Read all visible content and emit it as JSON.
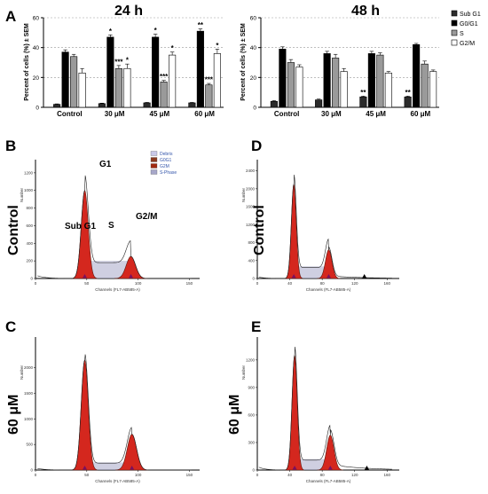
{
  "colors": {
    "sub_g1": "#2b2b2b",
    "g0g1": "#000000",
    "s": "#9a9a9a",
    "g2m": "#ffffff",
    "g0g1_fill": "#cc1f1f",
    "s_phase_fill": "#a7a7c9",
    "debris": "#c8c8e8",
    "highlight": "#ff66ff"
  },
  "legend": {
    "items": [
      "Sub G1",
      "G0/G1",
      "S",
      "G2/M"
    ]
  },
  "panels": {
    "A": "A",
    "B": "B",
    "C": "C",
    "D": "D",
    "E": "E"
  },
  "row_labels": {
    "control_b": "Control",
    "control_d": "Control",
    "conc_c": "60 μM",
    "conc_e": "60 μM"
  },
  "hist_labels": {
    "g1": "G1",
    "subg1": "Sub G1",
    "s": "S",
    "g2m": "G2/M"
  },
  "hist_legend": [
    "Debris",
    "G0G1",
    "G2M",
    "S-Phase"
  ],
  "hist_axis": {
    "xlabel": "Channels (FL7-AB585-A)",
    "ylabel": "Number"
  },
  "chart_data": [
    {
      "type": "bar",
      "title": "24 h",
      "ylabel": "Percent of cells (%) ± SEM",
      "ylim": [
        0,
        60
      ],
      "yticks": [
        0,
        20,
        40,
        60
      ],
      "categories": [
        "Control",
        "30 μM",
        "45 μM",
        "60 μM"
      ],
      "series": [
        {
          "name": "Sub G1",
          "values": [
            2,
            2.5,
            3,
            3
          ],
          "err": [
            0.3,
            0.3,
            0.3,
            0.3
          ]
        },
        {
          "name": "G0/G1",
          "values": [
            37,
            47,
            47,
            51
          ],
          "err": [
            1.5,
            1.5,
            2,
            1.5
          ]
        },
        {
          "name": "S",
          "values": [
            34,
            26,
            17,
            15
          ],
          "err": [
            1.5,
            2,
            1,
            1
          ]
        },
        {
          "name": "G2/M",
          "values": [
            23,
            26,
            35,
            36
          ],
          "err": [
            3,
            3,
            2,
            3
          ]
        }
      ],
      "significance": [
        {
          "category": 1,
          "series": 1,
          "label": "*"
        },
        {
          "category": 1,
          "series": 2,
          "label": "***"
        },
        {
          "category": 1,
          "series": 3,
          "label": "*"
        },
        {
          "category": 2,
          "series": 1,
          "label": "*"
        },
        {
          "category": 2,
          "series": 2,
          "label": "***"
        },
        {
          "category": 2,
          "series": 3,
          "label": "*"
        },
        {
          "category": 3,
          "series": 1,
          "label": "**"
        },
        {
          "category": 3,
          "series": 2,
          "label": "***"
        },
        {
          "category": 3,
          "series": 3,
          "label": "*"
        }
      ]
    },
    {
      "type": "bar",
      "title": "48 h",
      "ylabel": "Percent of cells (%) ± SEM",
      "ylim": [
        0,
        60
      ],
      "yticks": [
        0,
        20,
        40,
        60
      ],
      "categories": [
        "Control",
        "30 μM",
        "45 μM",
        "60 μM"
      ],
      "series": [
        {
          "name": "Sub G1",
          "values": [
            4,
            5,
            7,
            7
          ],
          "err": [
            0.5,
            0.5,
            0.5,
            0.5
          ]
        },
        {
          "name": "G0/G1",
          "values": [
            39,
            36,
            36,
            42
          ],
          "err": [
            1.5,
            1.5,
            1.5,
            0.8
          ]
        },
        {
          "name": "S",
          "values": [
            30,
            33,
            35,
            29
          ],
          "err": [
            2,
            2.5,
            1.5,
            2
          ]
        },
        {
          "name": "G2/M",
          "values": [
            27,
            24,
            23,
            24
          ],
          "err": [
            1.5,
            2,
            1,
            1
          ]
        }
      ],
      "significance": [
        {
          "category": 2,
          "series": 0,
          "label": "**"
        },
        {
          "category": 3,
          "series": 0,
          "label": "**"
        }
      ]
    }
  ],
  "histograms": {
    "B": {
      "xticks": [
        0,
        50,
        100,
        150
      ],
      "yticks": [
        0,
        200,
        400,
        600,
        800,
        1000,
        1200
      ],
      "xmax": 160,
      "ymax": 1350
    },
    "D": {
      "xticks": [
        0,
        40,
        80,
        120,
        160
      ],
      "yticks": [
        0,
        400,
        800,
        1200,
        1600,
        2000,
        2400
      ],
      "xmax": 175,
      "ymax": 2650
    },
    "C": {
      "xticks": [
        0,
        50,
        100,
        150
      ],
      "yticks": [
        0,
        500,
        1000,
        1500,
        2000
      ],
      "xmax": 160,
      "ymax": 2600
    },
    "E": {
      "xticks": [
        0,
        40,
        80,
        120,
        160
      ],
      "yticks": [
        0,
        300,
        600,
        900,
        1200
      ],
      "xmax": 175,
      "ymax": 1450
    }
  }
}
